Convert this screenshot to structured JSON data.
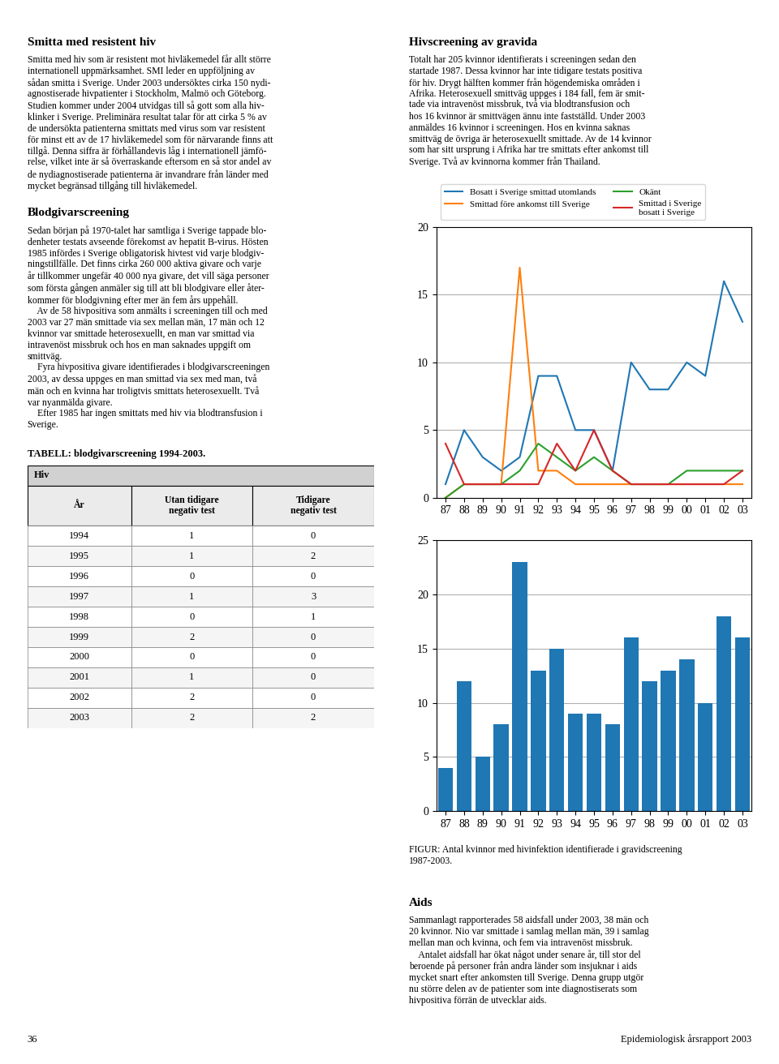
{
  "chart_data": [
    {
      "type": "line",
      "categories": [
        "87",
        "88",
        "89",
        "90",
        "91",
        "92",
        "93",
        "94",
        "95",
        "96",
        "97",
        "98",
        "99",
        "00",
        "01",
        "02",
        "03"
      ],
      "series": [
        {
          "name": "Bosatt i Sverige smittad utomlands",
          "values": [
            1,
            5,
            3,
            2,
            3,
            9,
            9,
            5,
            5,
            2,
            10,
            8,
            8,
            10,
            9,
            16,
            13
          ]
        },
        {
          "name": "Smittad före ankomst till Sverige",
          "values": [
            0,
            1,
            1,
            1,
            17,
            2,
            2,
            1,
            1,
            1,
            1,
            1,
            1,
            1,
            1,
            1,
            1
          ]
        },
        {
          "name": "Okänt",
          "values": [
            0,
            1,
            1,
            1,
            2,
            4,
            3,
            2,
            3,
            2,
            1,
            1,
            1,
            2,
            2,
            2,
            2
          ]
        },
        {
          "name": "Smittad i Sverige\nbosatt i Sverige",
          "values": [
            4,
            1,
            1,
            1,
            1,
            1,
            4,
            2,
            5,
            2,
            1,
            1,
            1,
            1,
            1,
            1,
            2
          ]
        }
      ],
      "ylim": [
        0,
        20
      ],
      "yticks": [
        0,
        5,
        10,
        15,
        20
      ],
      "grid": "y"
    },
    {
      "type": "bar",
      "categories": [
        "87",
        "88",
        "89",
        "90",
        "91",
        "92",
        "93",
        "94",
        "95",
        "96",
        "97",
        "98",
        "99",
        "00",
        "01",
        "02",
        "03"
      ],
      "values": [
        4,
        12,
        5,
        8,
        23,
        13,
        15,
        9,
        9,
        8,
        16,
        12,
        13,
        14,
        10,
        18,
        16
      ],
      "ylim": [
        0,
        25
      ],
      "yticks": [
        0,
        5,
        10,
        15,
        20,
        25
      ],
      "grid": "y",
      "annotations": [
        "FIGUR: Antal kvinnor med hivinfektion identifierade i gravidscreening\n1987-2003."
      ]
    },
    {
      "type": "table",
      "title": "TABELL: blodgivarscreening 1994-2003.",
      "header": "Hiv",
      "columns": [
        "År",
        "Utan tidigare\nnegativ test",
        "Tidigare\nnegativ test"
      ],
      "rows": [
        [
          "1994",
          1,
          0
        ],
        [
          "1995",
          1,
          2
        ],
        [
          "1996",
          0,
          0
        ],
        [
          "1997",
          1,
          3
        ],
        [
          "1998",
          0,
          1
        ],
        [
          "1999",
          2,
          0
        ],
        [
          "2000",
          0,
          0
        ],
        [
          "2001",
          1,
          0
        ],
        [
          "2002",
          2,
          0
        ],
        [
          "2003",
          2,
          2
        ]
      ]
    }
  ],
  "annotations": [
    {
      "title": "Smitta med resistent hiv",
      "text": "Smitta med hiv som är resistent mot hivläkemedel får allt större\ninternationell uppmärksamhet. SMI leder en uppföljning av\nsådan smitta i Sverige. Under 2003 undersöktes cirka 150 nydi-\nagnostiserade hivpatienter i Stockholm, Malmö och Göteborg.\nStudien kommer under 2004 utvidgas till så gott som alla hiv-\nklinker i Sverige. Preliminära resultat talar för att cirka 5 % av\nde undersökta patienterna smittats med virus som var resistent\nför minst ett av de 17 hivläkemedel som för närvarande finns att\ntillgå. Denna siffra är förhållandevis låg i internationell jämfö-\nrelse, vilket inte är så överraskande eftersom en så stor andel av\nde nydiagnostiserade patienterna är invandrare från länder med\nmycket begränsad tillgång till hivläkemedel."
    },
    {
      "title": "Blodgivarscreening",
      "text": "Sedan början på 1970-talet har samtliga i Sverige tappade blo-\ndenheter testats avseende förekomst av hepatit B-virus. Hösten\n1985 infördes i Sverige obligatorisk hivtest vid varje blodgiv-\nningstillfälle. Det finns cirka 260 000 aktiva givare och varje\når tillkommer ungefär 40 000 nya givare, det vill säga personer\nsom första gången anmäler sig till att bli blodgivare eller åter-\nkommer för blodgivning efter mer än fem års uppehåll.\n    Av de 58 hivpositiva som anmälts i screeningen till och med\n2003 var 27 män smittade via sex mellan män, 17 män och 12\nkvinnor var smittade heterosexuellt, en man var smittad via\nintravenöst missbruk och hos en man saknades uppgift om\nsmittväg.\n    Fyra hivpositiva givare identifierades i blodgivarscreeningen\n2003, av dessa uppges en man smittad via sex med man, två\nmän och en kvinna har troligtvis smittats heterosexuellt. Två\nvar nyanmälda givare.\n    Efter 1985 har ingen smittats med hiv via blodtransfusion i\nSverige."
    },
    {
      "title": "Hivscreening av gravida",
      "text": "Totalt har 205 kvinnor identifierats i screeningen sedan den\nstartade 1987. Dessa kvinnor har inte tidigare testats positiva\nför hiv. Drygt hälften kommer från högendemiska områden i\nAfrika. Heterosexuell smittväg uppges i 184 fall, fem är smit-\ntade via intravenöst missbruk, två via blodtransfusion och\nhos 16 kvinnor är smittvägen ännu inte fastställd. Under 2003\nanmäldes 16 kvinnor i screeningen. Hos en kvinna saknas\nsmittväg de övriga är heterosexuellt smittade. Av de 14 kvinnor\nsom har sitt ursprung i Afrika har tre smittats efter ankomst till\nSverige. Två av kvinnorna kommer från Thailand."
    },
    {
      "title": "Aids",
      "text": "Sammanlagt rapporterades 58 aidsfall under 2003, 38 män och\n20 kvinnor. Nio var smittade i samlag mellan män, 39 i samlag\nmellan man och kvinna, och fem via intravenöst missbruk.\n    Antalet aidsfall har ökat något under senare år, till stor del\nberoende på personer från andra länder som insjuknar i aids\nmycket snart efter ankomsten till Sverige. Denna grupp utgör\nnu större delen av de patienter som inte diagnostiserats som\nhivpositiva förrän de utvecklar aids."
    }
  ],
  "footer": [
    "36",
    "Epidemiologisk årsrapport 2003"
  ]
}
